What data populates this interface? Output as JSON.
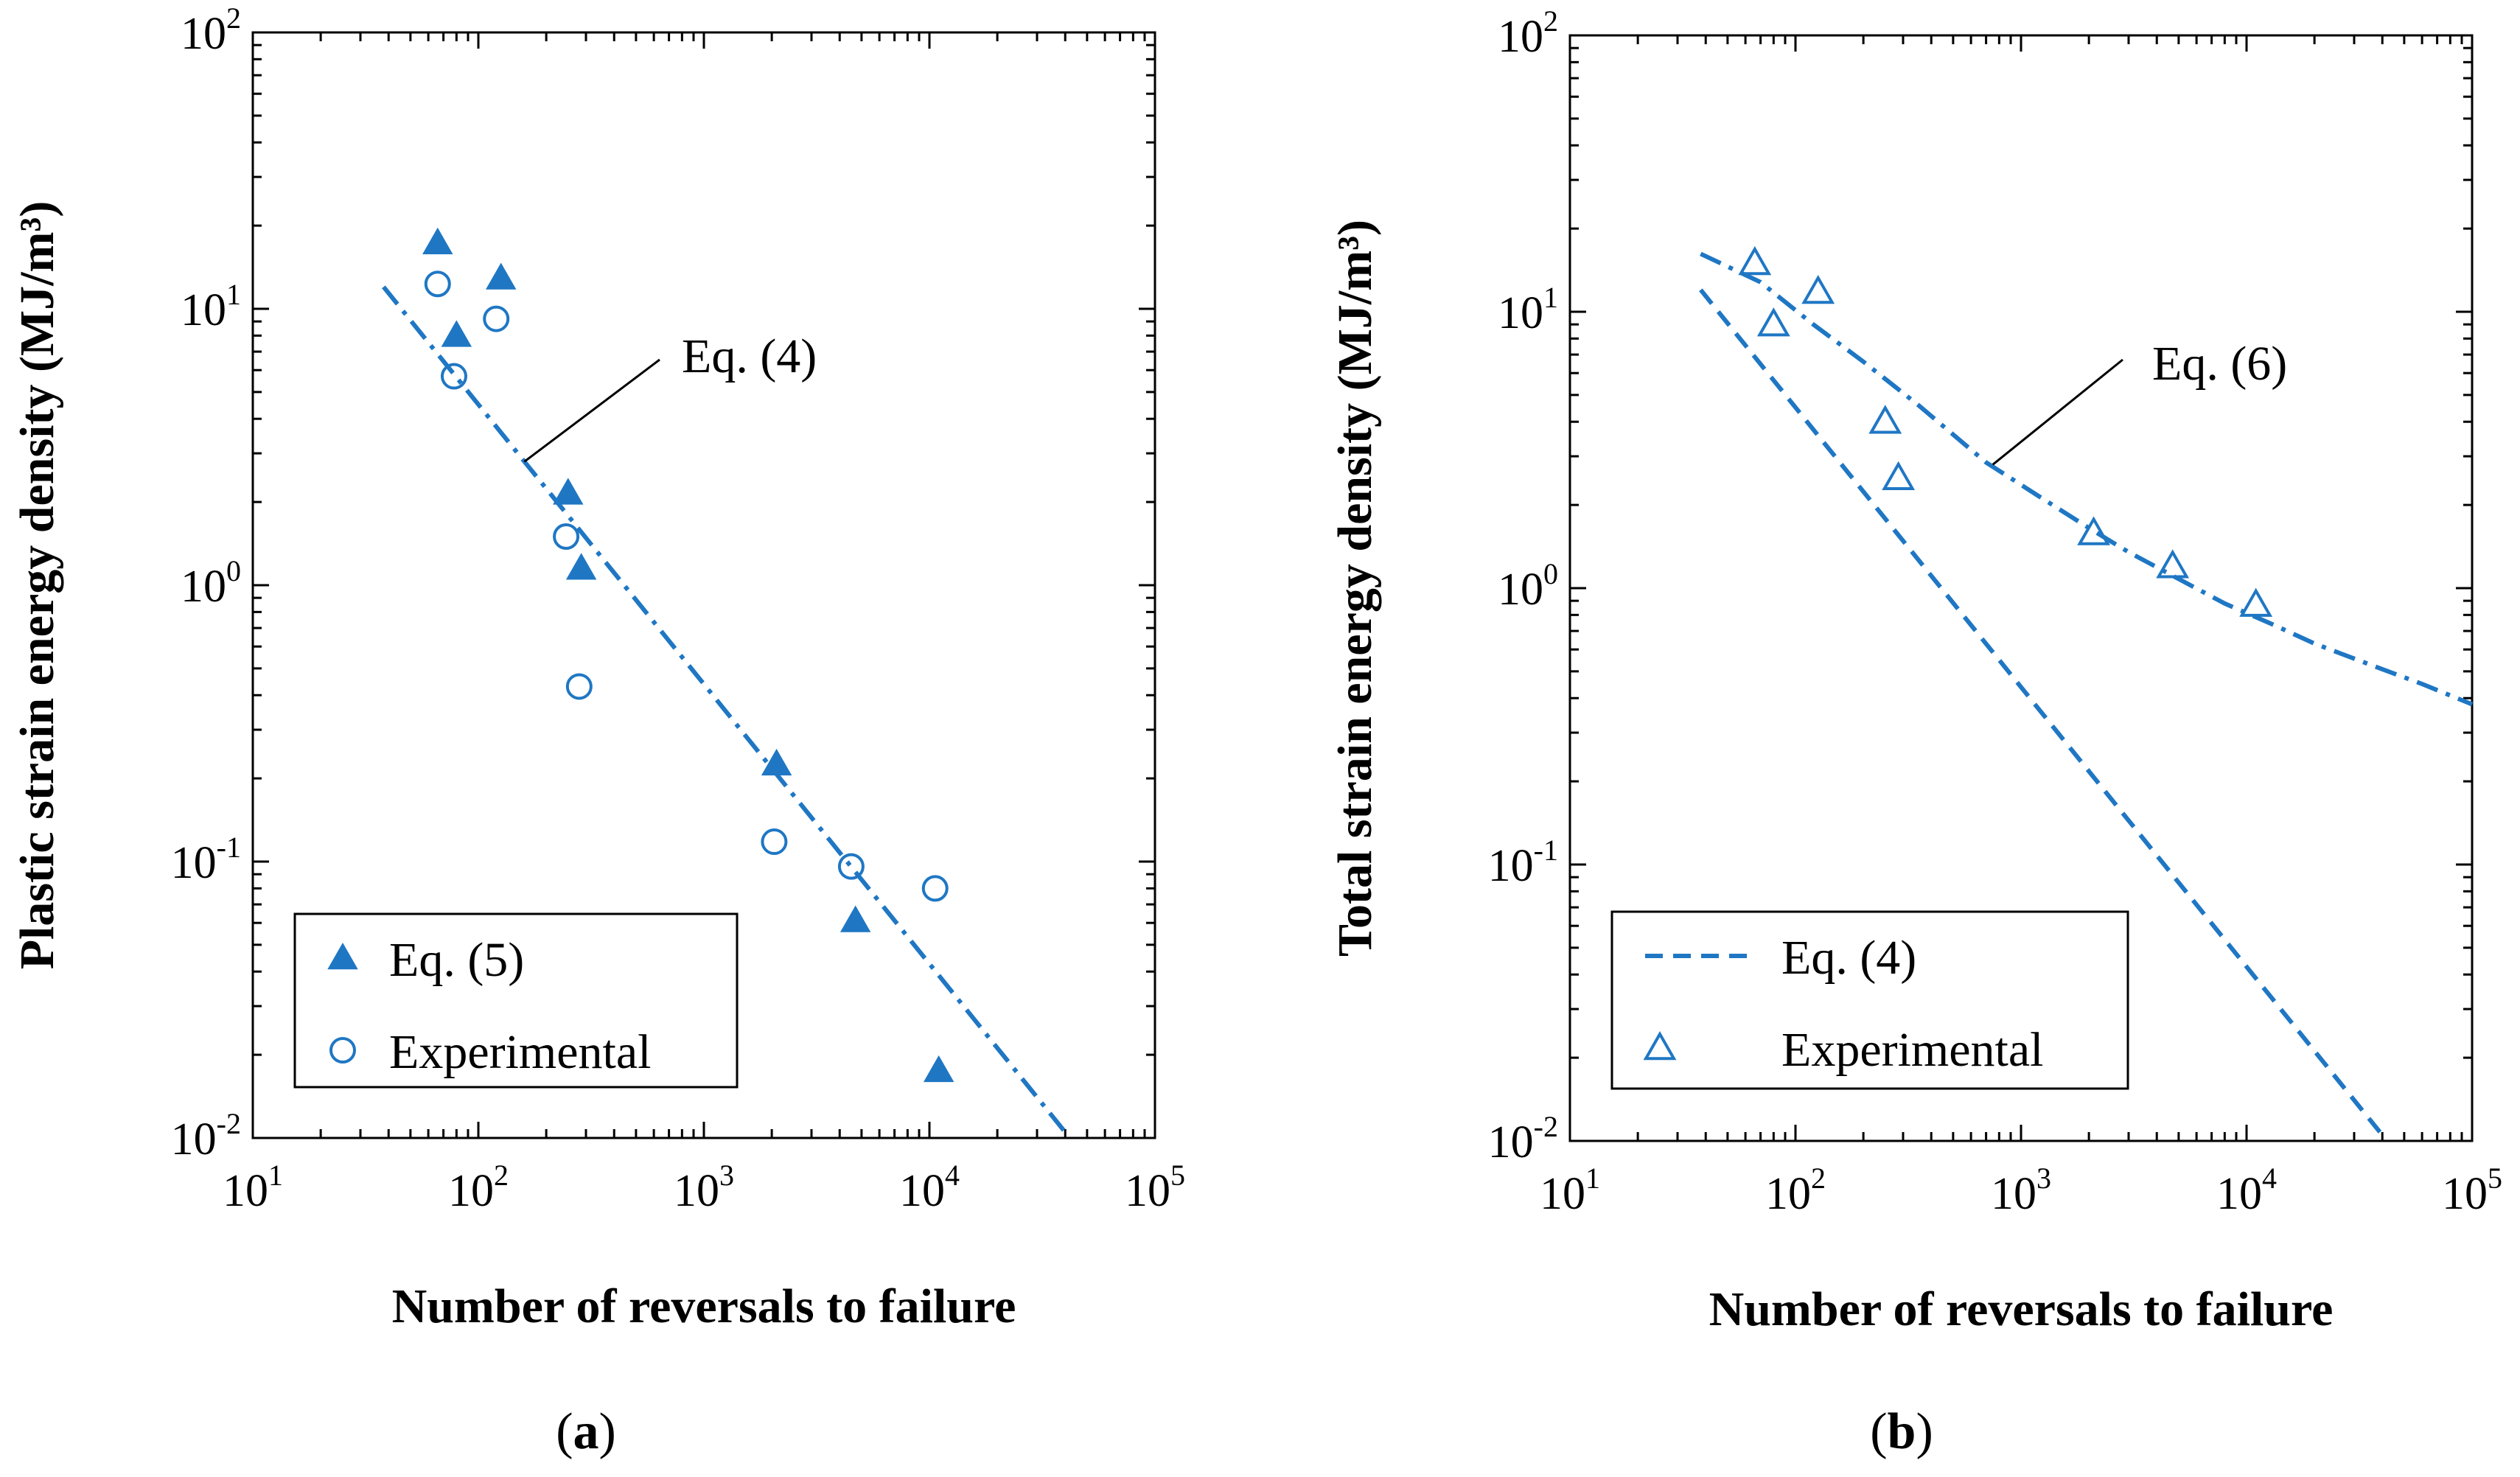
{
  "figure": {
    "panel_labels": [
      {
        "open": "(",
        "letter": "a",
        "close": ")"
      },
      {
        "open": "(",
        "letter": "b",
        "close": ")"
      }
    ]
  },
  "chart_data": [
    {
      "panel": "a",
      "type": "scatter",
      "x_scale": "log",
      "y_scale": "log",
      "xlabel": "Number of reversals to failure",
      "ylabel": "Plastic strain energy density (MJ/m³)",
      "xlim": [
        10,
        100000
      ],
      "ylim": [
        0.01,
        100
      ],
      "x_ticks": [
        {
          "base": "10",
          "exp": "1"
        },
        {
          "base": "10",
          "exp": "2"
        },
        {
          "base": "10",
          "exp": "3"
        },
        {
          "base": "10",
          "exp": "4"
        },
        {
          "base": "10",
          "exp": "5"
        }
      ],
      "y_ticks": [
        {
          "base": "10",
          "exp": "-2"
        },
        {
          "base": "10",
          "exp": "-1"
        },
        {
          "base": "10",
          "exp": "0"
        },
        {
          "base": "10",
          "exp": "1"
        },
        {
          "base": "10",
          "exp": "2"
        }
      ],
      "series": [
        {
          "name": "Eq. (5)",
          "marker": "filled-triangle",
          "color": "#1f77c4",
          "points": [
            [
              66,
              17.3
            ],
            [
              80,
              8.0
            ],
            [
              126,
              12.9
            ],
            [
              250,
              2.15
            ],
            [
              286,
              1.15
            ],
            [
              2100,
              0.225
            ],
            [
              4700,
              0.061
            ],
            [
              11000,
              0.0175
            ]
          ]
        },
        {
          "name": "Experimental",
          "marker": "open-circle",
          "color": "#1f77c4",
          "points": [
            [
              66,
              12.3
            ],
            [
              78,
              5.7
            ],
            [
              120,
              9.2
            ],
            [
              245,
              1.5
            ],
            [
              280,
              0.43
            ],
            [
              2050,
              0.118
            ],
            [
              4500,
              0.096
            ],
            [
              10600,
              0.08
            ]
          ]
        },
        {
          "name": "Eq. (4)",
          "line": "dash-dot",
          "color": "#1f77c4",
          "points": [
            [
              38,
              12.0
            ],
            [
              40000,
              0.0105
            ]
          ]
        }
      ],
      "legend": {
        "position": "bottom-left",
        "entries": [
          {
            "label": "Eq. (5)"
          },
          {
            "label": "Experimental"
          }
        ]
      },
      "annotations": [
        {
          "text": "Eq. (4)",
          "points_to": [
            160,
            2.8
          ]
        }
      ]
    },
    {
      "panel": "b",
      "type": "scatter",
      "x_scale": "log",
      "y_scale": "log",
      "xlabel": "Number of reversals to failure",
      "ylabel": "Total strain energy density (MJ/m³)",
      "xlim": [
        10,
        100000
      ],
      "ylim": [
        0.01,
        100
      ],
      "x_ticks": [
        {
          "base": "10",
          "exp": "1"
        },
        {
          "base": "10",
          "exp": "2"
        },
        {
          "base": "10",
          "exp": "3"
        },
        {
          "base": "10",
          "exp": "4"
        },
        {
          "base": "10",
          "exp": "5"
        }
      ],
      "y_ticks": [
        {
          "base": "10",
          "exp": "-2"
        },
        {
          "base": "10",
          "exp": "-1"
        },
        {
          "base": "10",
          "exp": "0"
        },
        {
          "base": "10",
          "exp": "1"
        },
        {
          "base": "10",
          "exp": "2"
        }
      ],
      "series": [
        {
          "name": "Eq. (4)",
          "line": "dashed",
          "color": "#1f77c4",
          "points": [
            [
              38,
              12.0
            ],
            [
              40000,
              0.0105
            ]
          ]
        },
        {
          "name": "Eq. (6)",
          "line": "dash-dot",
          "color": "#1f77c4",
          "points": [
            [
              38,
              16.2
            ],
            [
              70,
              12.8
            ],
            [
              120,
              9.0
            ],
            [
              200,
              6.6
            ],
            [
              350,
              4.6
            ],
            [
              700,
              2.85
            ],
            [
              1200,
              2.15
            ],
            [
              2000,
              1.65
            ],
            [
              3000,
              1.35
            ],
            [
              5000,
              1.08
            ],
            [
              8000,
              0.88
            ],
            [
              13000,
              0.74
            ],
            [
              20000,
              0.63
            ],
            [
              35000,
              0.53
            ],
            [
              60000,
              0.45
            ],
            [
              100000,
              0.38
            ]
          ]
        },
        {
          "name": "Experimental",
          "marker": "open-triangle",
          "color": "#1f77c4",
          "points": [
            [
              66,
              15.0
            ],
            [
              80,
              9.0
            ],
            [
              126,
              11.8
            ],
            [
              250,
              4.0
            ],
            [
              286,
              2.5
            ],
            [
              2100,
              1.58
            ],
            [
              4700,
              1.2
            ],
            [
              11000,
              0.87
            ]
          ]
        }
      ],
      "legend": {
        "position": "bottom-left",
        "entries": [
          {
            "label": "Eq. (4)"
          },
          {
            "label": "Experimental"
          }
        ]
      },
      "annotations": [
        {
          "text": "Eq. (6)",
          "points_to": [
            750,
            2.8
          ]
        }
      ]
    }
  ]
}
